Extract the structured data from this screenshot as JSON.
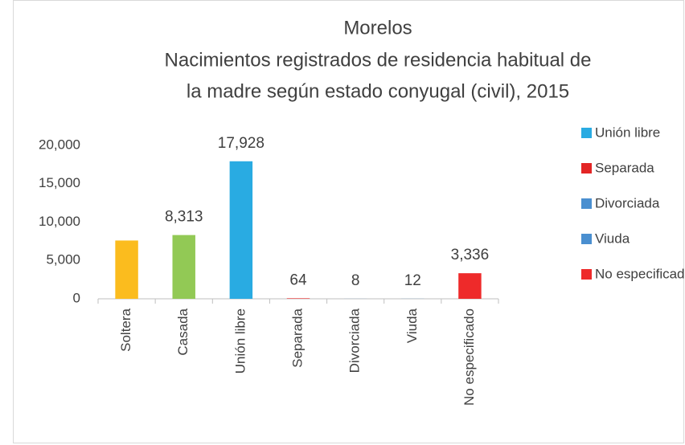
{
  "chart_data": {
    "type": "bar",
    "title": "Morelos",
    "subtitle": [
      "Nacimientos registrados de residencia habitual de",
      "la madre según estado conyugal (civil), 2015"
    ],
    "categories": [
      "Soltera",
      "Casada",
      "Unión libre",
      "Separada",
      "Divorciada",
      "Viuda",
      "No especificado"
    ],
    "values": [
      7600,
      8313,
      17928,
      64,
      8,
      12,
      3336
    ],
    "value_labels": [
      null,
      "8,313",
      "17,928",
      "64",
      "8",
      "12",
      "3,336"
    ],
    "colors": [
      "#fbbc1e",
      "#92c955",
      "#29abe2",
      "#e32525",
      "#4a8fd0",
      "#4a8fd0",
      "#ee2a2a"
    ],
    "legend": [
      {
        "name": "Unión libre",
        "color": "#29abe2"
      },
      {
        "name": "Separada",
        "color": "#e32525"
      },
      {
        "name": "Divorciada",
        "color": "#4a8fd0"
      },
      {
        "name": "Viuda",
        "color": "#4a8fd0"
      },
      {
        "name": "No especificado",
        "color": "#ee2a2a"
      }
    ],
    "ylim": [
      0,
      20000
    ],
    "yticks": [
      0,
      {
        "value": 5000,
        "label": "5,000"
      },
      {
        "value": 10000,
        "label": "10,000"
      },
      {
        "value": 15000,
        "label": "15,000"
      },
      {
        "value": 20000,
        "label": "20,000"
      }
    ],
    "grid": false
  }
}
